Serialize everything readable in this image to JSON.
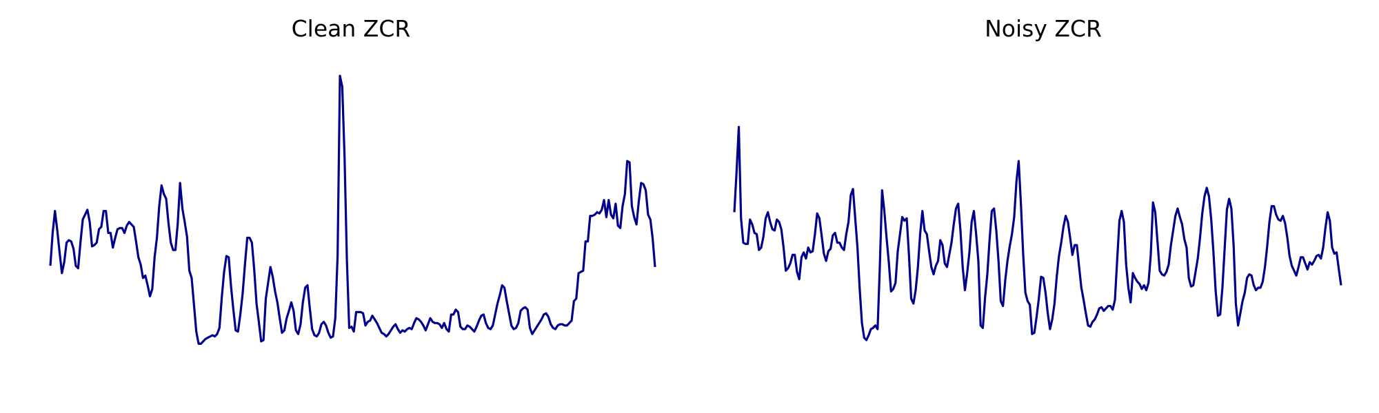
{
  "colors": {
    "line": "#00008b",
    "background": "#ffffff"
  },
  "chart_data": [
    {
      "type": "line",
      "title": "Clean ZCR",
      "xlabel": "",
      "ylabel": "",
      "axes_visible": false,
      "grid": false,
      "xlim": [
        0,
        171
      ],
      "ylim": [
        0.005,
        0.265
      ],
      "series": [
        {
          "values": [
            0.101,
            0.128,
            0.146,
            0.13,
            0.112,
            0.095,
            0.104,
            0.12,
            0.122,
            0.121,
            0.115,
            0.101,
            0.099,
            0.12,
            0.139,
            0.143,
            0.147,
            0.137,
            0.117,
            0.118,
            0.12,
            0.131,
            0.133,
            0.146,
            0.146,
            0.128,
            0.128,
            0.116,
            0.124,
            0.131,
            0.132,
            0.132,
            0.128,
            0.134,
            0.137,
            0.135,
            0.133,
            0.121,
            0.108,
            0.102,
            0.091,
            0.093,
            0.085,
            0.076,
            0.082,
            0.108,
            0.124,
            0.15,
            0.167,
            0.16,
            0.156,
            0.136,
            0.12,
            0.114,
            0.114,
            0.136,
            0.169,
            0.148,
            0.137,
            0.125,
            0.097,
            0.091,
            0.069,
            0.047,
            0.037,
            0.037,
            0.039,
            0.041,
            0.042,
            0.043,
            0.044,
            0.043,
            0.045,
            0.05,
            0.075,
            0.096,
            0.109,
            0.108,
            0.084,
            0.065,
            0.048,
            0.047,
            0.061,
            0.078,
            0.102,
            0.124,
            0.124,
            0.12,
            0.098,
            0.07,
            0.055,
            0.039,
            0.04,
            0.074,
            0.087,
            0.1,
            0.092,
            0.08,
            0.071,
            0.058,
            0.046,
            0.048,
            0.058,
            0.064,
            0.071,
            0.064,
            0.048,
            0.045,
            0.053,
            0.071,
            0.083,
            0.085,
            0.066,
            0.049,
            0.044,
            0.043,
            0.046,
            0.053,
            0.055,
            0.052,
            0.046,
            0.042,
            0.043,
            0.058,
            0.11,
            0.257,
            0.248,
            0.19,
            0.106,
            0.05,
            0.051,
            0.047,
            0.063,
            0.063,
            0.063,
            0.062,
            0.052,
            0.055,
            0.056,
            0.06,
            0.057,
            0.054,
            0.05,
            0.046,
            0.045,
            0.043,
            0.045,
            0.048,
            0.051,
            0.053,
            0.049,
            0.046,
            0.048,
            0.047,
            0.049,
            0.05,
            0.049,
            0.054,
            0.058,
            0.057,
            0.055,
            0.052,
            0.048,
            0.053,
            0.058,
            0.055,
            0.054,
            0.054,
            0.053,
            0.05,
            0.054,
            0.049,
            0.047,
            0.061,
            0.061,
            0.065,
            0.063,
            0.051,
            0.049,
            0.049,
            0.052,
            0.051,
            0.049,
            0.047,
            0.051,
            0.056,
            0.06,
            0.061,
            0.054,
            0.05,
            0.049,
            0.052,
            0.061,
            0.07,
            0.077,
            0.085,
            0.083,
            0.072,
            0.062,
            0.052,
            0.049,
            0.05,
            0.054,
            0.064,
            0.066,
            0.067,
            0.065,
            0.05,
            0.045,
            0.048,
            0.051,
            0.054,
            0.057,
            0.061,
            0.062,
            0.059,
            0.053,
            0.05,
            0.049,
            0.052,
            0.053,
            0.053,
            0.052,
            0.052,
            0.054,
            0.056,
            0.072,
            0.074,
            0.095,
            0.096,
            0.097,
            0.121,
            0.121,
            0.142,
            0.142,
            0.143,
            0.145,
            0.144,
            0.147,
            0.155,
            0.141,
            0.155,
            0.143,
            0.14,
            0.152,
            0.134,
            0.132,
            0.15,
            0.16,
            0.187,
            0.186,
            0.15,
            0.141,
            0.135,
            0.154,
            0.169,
            0.168,
            0.163,
            0.143,
            0.139,
            0.123,
            0.1
          ]
        }
      ]
    },
    {
      "type": "line",
      "title": "Noisy ZCR",
      "xlabel": "",
      "ylabel": "",
      "axes_visible": false,
      "grid": false,
      "xlim": [
        0,
        171
      ],
      "ylim": [
        0.005,
        0.265
      ],
      "series": [
        {
          "values": [
            0.145,
            0.178,
            0.215,
            0.14,
            0.12,
            0.119,
            0.119,
            0.139,
            0.135,
            0.128,
            0.127,
            0.114,
            0.116,
            0.125,
            0.14,
            0.145,
            0.137,
            0.131,
            0.13,
            0.139,
            0.137,
            0.131,
            0.116,
            0.097,
            0.099,
            0.103,
            0.11,
            0.11,
            0.096,
            0.09,
            0.108,
            0.112,
            0.107,
            0.116,
            0.112,
            0.113,
            0.127,
            0.144,
            0.14,
            0.126,
            0.111,
            0.105,
            0.113,
            0.115,
            0.126,
            0.128,
            0.12,
            0.12,
            0.116,
            0.114,
            0.127,
            0.137,
            0.159,
            0.164,
            0.14,
            0.116,
            0.082,
            0.054,
            0.042,
            0.04,
            0.044,
            0.049,
            0.05,
            0.052,
            0.049,
            0.101,
            0.163,
            0.146,
            0.124,
            0.104,
            0.08,
            0.082,
            0.087,
            0.113,
            0.127,
            0.141,
            0.138,
            0.14,
            0.11,
            0.074,
            0.07,
            0.081,
            0.1,
            0.127,
            0.146,
            0.13,
            0.127,
            0.113,
            0.1,
            0.094,
            0.101,
            0.105,
            0.122,
            0.118,
            0.103,
            0.1,
            0.11,
            0.12,
            0.135,
            0.148,
            0.152,
            0.13,
            0.1,
            0.081,
            0.095,
            0.112,
            0.137,
            0.146,
            0.127,
            0.105,
            0.052,
            0.05,
            0.075,
            0.094,
            0.122,
            0.146,
            0.148,
            0.13,
            0.105,
            0.072,
            0.068,
            0.089,
            0.105,
            0.117,
            0.127,
            0.141,
            0.17,
            0.187,
            0.152,
            0.111,
            0.079,
            0.072,
            0.069,
            0.045,
            0.046,
            0.059,
            0.074,
            0.092,
            0.091,
            0.079,
            0.062,
            0.049,
            0.057,
            0.07,
            0.092,
            0.109,
            0.12,
            0.133,
            0.142,
            0.137,
            0.124,
            0.11,
            0.118,
            0.118,
            0.1,
            0.083,
            0.073,
            0.062,
            0.052,
            0.051,
            0.055,
            0.057,
            0.061,
            0.066,
            0.067,
            0.064,
            0.066,
            0.068,
            0.068,
            0.065,
            0.073,
            0.106,
            0.138,
            0.146,
            0.137,
            0.102,
            0.083,
            0.071,
            0.095,
            0.091,
            0.088,
            0.086,
            0.082,
            0.085,
            0.081,
            0.087,
            0.11,
            0.153,
            0.145,
            0.121,
            0.097,
            0.094,
            0.093,
            0.096,
            0.102,
            0.118,
            0.13,
            0.142,
            0.148,
            0.141,
            0.135,
            0.123,
            0.116,
            0.091,
            0.084,
            0.085,
            0.096,
            0.107,
            0.124,
            0.144,
            0.158,
            0.165,
            0.158,
            0.139,
            0.112,
            0.08,
            0.06,
            0.061,
            0.083,
            0.115,
            0.147,
            0.156,
            0.148,
            0.118,
            0.07,
            0.052,
            0.062,
            0.072,
            0.079,
            0.091,
            0.094,
            0.093,
            0.085,
            0.081,
            0.083,
            0.083,
            0.088,
            0.1,
            0.117,
            0.137,
            0.15,
            0.15,
            0.143,
            0.139,
            0.138,
            0.142,
            0.136,
            0.124,
            0.109,
            0.101,
            0.097,
            0.093,
            0.1,
            0.108,
            0.108,
            0.103,
            0.098,
            0.104,
            0.102,
            0.105,
            0.109,
            0.11,
            0.107,
            0.116,
            0.132,
            0.145,
            0.138,
            0.116,
            0.111,
            0.112,
            0.098,
            0.085
          ]
        }
      ]
    }
  ]
}
